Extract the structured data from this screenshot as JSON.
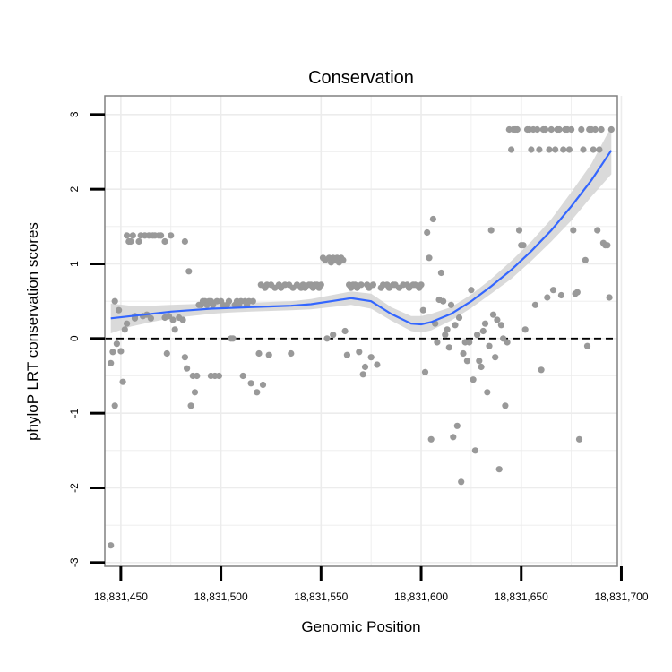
{
  "chart_data": {
    "type": "scatter",
    "title": "Conservation",
    "xlabel": "Genomic Position",
    "ylabel": "phyloP LRT conservation scores",
    "xlim": [
      18831442,
      18831698
    ],
    "ylim": [
      -3.05,
      3.25
    ],
    "xticks": [
      {
        "value": 18831450,
        "label": "18,831,450"
      },
      {
        "value": 18831500,
        "label": "18,831,500"
      },
      {
        "value": 18831550,
        "label": "18,831,550"
      },
      {
        "value": 18831600,
        "label": "18,831,600"
      },
      {
        "value": 18831650,
        "label": "18,831,650"
      },
      {
        "value": 18831700,
        "label": "18,831,700"
      }
    ],
    "yticks": [
      {
        "value": -3,
        "label": "-3"
      },
      {
        "value": -2,
        "label": "-2"
      },
      {
        "value": -1,
        "label": "-1"
      },
      {
        "value": 0,
        "label": "0"
      },
      {
        "value": 1,
        "label": "1"
      },
      {
        "value": 2,
        "label": "2"
      },
      {
        "value": 3,
        "label": "3"
      }
    ],
    "reference_line": {
      "y": 0,
      "style": "dashed"
    },
    "colors": {
      "points": "#999999",
      "smooth": "#3366ff",
      "ribbon": "#d4d4d4",
      "grid": "#ececec",
      "border": "#808080"
    },
    "points": [
      [
        18831445,
        -2.77
      ],
      [
        18831445,
        -0.33
      ],
      [
        18831446,
        -0.18
      ],
      [
        18831447,
        -0.9
      ],
      [
        18831447,
        0.5
      ],
      [
        18831448,
        -0.07
      ],
      [
        18831449,
        0.38
      ],
      [
        18831450,
        -0.17
      ],
      [
        18831451,
        -0.58
      ],
      [
        18831452,
        0.12
      ],
      [
        18831453,
        1.38
      ],
      [
        18831453,
        0.2
      ],
      [
        18831454,
        1.3
      ],
      [
        18831455,
        1.3
      ],
      [
        18831456,
        1.38
      ],
      [
        18831457,
        0.3
      ],
      [
        18831457,
        0.27
      ],
      [
        18831459,
        1.3
      ],
      [
        18831460,
        1.38
      ],
      [
        18831461,
        0.3
      ],
      [
        18831462,
        1.38
      ],
      [
        18831463,
        0.32
      ],
      [
        18831464,
        1.38
      ],
      [
        18831465,
        0.27
      ],
      [
        18831466,
        1.38
      ],
      [
        18831467,
        1.38
      ],
      [
        18831469,
        1.38
      ],
      [
        18831470,
        1.38
      ],
      [
        18831472,
        1.3
      ],
      [
        18831472,
        0.28
      ],
      [
        18831473,
        -0.2
      ],
      [
        18831474,
        0.3
      ],
      [
        18831475,
        1.38
      ],
      [
        18831476,
        0.25
      ],
      [
        18831477,
        0.12
      ],
      [
        18831479,
        0.28
      ],
      [
        18831481,
        0.25
      ],
      [
        18831482,
        1.3
      ],
      [
        18831482,
        -0.25
      ],
      [
        18831483,
        -0.4
      ],
      [
        18831484,
        0.9
      ],
      [
        18831485,
        -0.9
      ],
      [
        18831486,
        -0.5
      ],
      [
        18831487,
        -0.72
      ],
      [
        18831488,
        -0.5
      ],
      [
        18831489,
        0.45
      ],
      [
        18831490,
        0.45
      ],
      [
        18831491,
        0.5
      ],
      [
        18831492,
        0.5
      ],
      [
        18831493,
        0.45
      ],
      [
        18831494,
        0.5
      ],
      [
        18831495,
        -0.5
      ],
      [
        18831495,
        0.5
      ],
      [
        18831496,
        0.45
      ],
      [
        18831497,
        -0.5
      ],
      [
        18831498,
        0.5
      ],
      [
        18831499,
        -0.5
      ],
      [
        18831500,
        0.5
      ],
      [
        18831501,
        0.45
      ],
      [
        18831503,
        0.45
      ],
      [
        18831504,
        0.5
      ],
      [
        18831505,
        0.0
      ],
      [
        18831506,
        0.0
      ],
      [
        18831507,
        0.45
      ],
      [
        18831508,
        0.5
      ],
      [
        18831509,
        0.45
      ],
      [
        18831510,
        0.5
      ],
      [
        18831511,
        -0.5
      ],
      [
        18831512,
        0.5
      ],
      [
        18831513,
        0.45
      ],
      [
        18831514,
        0.5
      ],
      [
        18831515,
        -0.6
      ],
      [
        18831516,
        0.5
      ],
      [
        18831518,
        -0.72
      ],
      [
        18831519,
        -0.2
      ],
      [
        18831520,
        0.72
      ],
      [
        18831521,
        -0.62
      ],
      [
        18831522,
        0.68
      ],
      [
        18831523,
        0.72
      ],
      [
        18831524,
        -0.22
      ],
      [
        18831525,
        0.72
      ],
      [
        18831527,
        0.68
      ],
      [
        18831529,
        0.72
      ],
      [
        18831530,
        0.68
      ],
      [
        18831532,
        0.72
      ],
      [
        18831534,
        0.72
      ],
      [
        18831535,
        -0.2
      ],
      [
        18831536,
        0.68
      ],
      [
        18831538,
        0.72
      ],
      [
        18831540,
        0.68
      ],
      [
        18831541,
        0.72
      ],
      [
        18831542,
        0.68
      ],
      [
        18831544,
        0.72
      ],
      [
        18831545,
        0.72
      ],
      [
        18831546,
        0.68
      ],
      [
        18831547,
        0.72
      ],
      [
        18831548,
        0.72
      ],
      [
        18831549,
        0.68
      ],
      [
        18831550,
        0.72
      ],
      [
        18831551,
        1.08
      ],
      [
        18831552,
        1.05
      ],
      [
        18831553,
        0.0
      ],
      [
        18831554,
        1.08
      ],
      [
        18831555,
        1.02
      ],
      [
        18831556,
        1.08
      ],
      [
        18831556,
        0.05
      ],
      [
        18831557,
        1.05
      ],
      [
        18831558,
        1.08
      ],
      [
        18831559,
        1.02
      ],
      [
        18831560,
        1.08
      ],
      [
        18831561,
        1.05
      ],
      [
        18831562,
        0.1
      ],
      [
        18831563,
        -0.22
      ],
      [
        18831564,
        0.72
      ],
      [
        18831565,
        0.68
      ],
      [
        18831566,
        0.72
      ],
      [
        18831567,
        0.72
      ],
      [
        18831568,
        0.68
      ],
      [
        18831569,
        -0.18
      ],
      [
        18831570,
        0.72
      ],
      [
        18831571,
        -0.48
      ],
      [
        18831572,
        -0.38
      ],
      [
        18831573,
        0.72
      ],
      [
        18831574,
        0.68
      ],
      [
        18831575,
        -0.25
      ],
      [
        18831576,
        0.72
      ],
      [
        18831578,
        -0.35
      ],
      [
        18831580,
        0.68
      ],
      [
        18831581,
        0.72
      ],
      [
        18831583,
        0.72
      ],
      [
        18831584,
        0.68
      ],
      [
        18831586,
        0.72
      ],
      [
        18831587,
        0.72
      ],
      [
        18831589,
        0.68
      ],
      [
        18831591,
        0.72
      ],
      [
        18831593,
        0.72
      ],
      [
        18831594,
        0.68
      ],
      [
        18831596,
        0.72
      ],
      [
        18831597,
        0.72
      ],
      [
        18831599,
        0.68
      ],
      [
        18831600,
        0.72
      ],
      [
        18831601,
        0.38
      ],
      [
        18831602,
        -0.45
      ],
      [
        18831603,
        1.42
      ],
      [
        18831604,
        1.08
      ],
      [
        18831605,
        -1.35
      ],
      [
        18831606,
        1.6
      ],
      [
        18831607,
        0.2
      ],
      [
        18831608,
        -0.05
      ],
      [
        18831609,
        0.52
      ],
      [
        18831610,
        0.88
      ],
      [
        18831611,
        0.5
      ],
      [
        18831612,
        0.05
      ],
      [
        18831613,
        0.12
      ],
      [
        18831614,
        -0.12
      ],
      [
        18831615,
        0.45
      ],
      [
        18831616,
        -1.32
      ],
      [
        18831617,
        0.18
      ],
      [
        18831618,
        -1.17
      ],
      [
        18831619,
        0.28
      ],
      [
        18831620,
        -1.92
      ],
      [
        18831621,
        -0.2
      ],
      [
        18831622,
        -0.05
      ],
      [
        18831623,
        -0.3
      ],
      [
        18831624,
        -0.05
      ],
      [
        18831625,
        0.65
      ],
      [
        18831626,
        -0.55
      ],
      [
        18831627,
        -1.5
      ],
      [
        18831628,
        0.05
      ],
      [
        18831629,
        -0.3
      ],
      [
        18831630,
        -0.38
      ],
      [
        18831631,
        0.1
      ],
      [
        18831632,
        0.2
      ],
      [
        18831633,
        -0.72
      ],
      [
        18831634,
        -0.1
      ],
      [
        18831635,
        1.45
      ],
      [
        18831636,
        0.32
      ],
      [
        18831637,
        -0.25
      ],
      [
        18831638,
        0.25
      ],
      [
        18831639,
        -1.75
      ],
      [
        18831640,
        0.18
      ],
      [
        18831641,
        0.0
      ],
      [
        18831642,
        -0.9
      ],
      [
        18831643,
        -0.05
      ],
      [
        18831644,
        2.8
      ],
      [
        18831645,
        2.53
      ],
      [
        18831646,
        2.8
      ],
      [
        18831647,
        2.8
      ],
      [
        18831648,
        2.8
      ],
      [
        18831649,
        1.45
      ],
      [
        18831650,
        1.25
      ],
      [
        18831651,
        1.25
      ],
      [
        18831652,
        0.12
      ],
      [
        18831653,
        2.8
      ],
      [
        18831654,
        2.8
      ],
      [
        18831655,
        2.53
      ],
      [
        18831656,
        2.8
      ],
      [
        18831657,
        0.45
      ],
      [
        18831658,
        2.8
      ],
      [
        18831659,
        2.53
      ],
      [
        18831660,
        -0.42
      ],
      [
        18831661,
        2.8
      ],
      [
        18831662,
        2.8
      ],
      [
        18831663,
        0.55
      ],
      [
        18831664,
        2.53
      ],
      [
        18831665,
        2.8
      ],
      [
        18831666,
        0.65
      ],
      [
        18831667,
        2.53
      ],
      [
        18831668,
        2.8
      ],
      [
        18831669,
        2.8
      ],
      [
        18831670,
        0.58
      ],
      [
        18831671,
        2.53
      ],
      [
        18831672,
        2.8
      ],
      [
        18831673,
        2.8
      ],
      [
        18831674,
        2.53
      ],
      [
        18831675,
        2.8
      ],
      [
        18831676,
        1.45
      ],
      [
        18831677,
        0.6
      ],
      [
        18831678,
        0.62
      ],
      [
        18831679,
        -1.35
      ],
      [
        18831680,
        2.8
      ],
      [
        18831681,
        2.53
      ],
      [
        18831682,
        1.05
      ],
      [
        18831683,
        -0.1
      ],
      [
        18831684,
        2.8
      ],
      [
        18831685,
        2.8
      ],
      [
        18831686,
        2.53
      ],
      [
        18831687,
        2.8
      ],
      [
        18831688,
        1.45
      ],
      [
        18831689,
        2.53
      ],
      [
        18831690,
        2.8
      ],
      [
        18831691,
        1.28
      ],
      [
        18831692,
        1.25
      ],
      [
        18831693,
        1.25
      ],
      [
        18831694,
        0.55
      ],
      [
        18831695,
        2.8
      ]
    ],
    "smooth": {
      "x": [
        18831445,
        18831455,
        18831465,
        18831475,
        18831485,
        18831495,
        18831505,
        18831515,
        18831525,
        18831535,
        18831545,
        18831555,
        18831565,
        18831575,
        18831585,
        18831595,
        18831600,
        18831605,
        18831615,
        18831625,
        18831635,
        18831645,
        18831655,
        18831665,
        18831675,
        18831685,
        18831695
      ],
      "y": [
        0.27,
        0.3,
        0.33,
        0.36,
        0.38,
        0.4,
        0.41,
        0.42,
        0.43,
        0.44,
        0.46,
        0.5,
        0.54,
        0.5,
        0.33,
        0.2,
        0.19,
        0.22,
        0.33,
        0.5,
        0.7,
        0.92,
        1.17,
        1.45,
        1.77,
        2.12,
        2.52
      ],
      "lower": [
        0.07,
        0.16,
        0.22,
        0.27,
        0.3,
        0.33,
        0.35,
        0.36,
        0.37,
        0.38,
        0.39,
        0.42,
        0.45,
        0.4,
        0.24,
        0.1,
        0.08,
        0.11,
        0.24,
        0.41,
        0.6,
        0.8,
        1.04,
        1.3,
        1.58,
        1.9,
        2.2
      ],
      "upper": [
        0.47,
        0.44,
        0.44,
        0.45,
        0.46,
        0.47,
        0.47,
        0.48,
        0.49,
        0.5,
        0.53,
        0.58,
        0.63,
        0.6,
        0.42,
        0.3,
        0.3,
        0.33,
        0.42,
        0.59,
        0.8,
        1.04,
        1.3,
        1.6,
        1.96,
        2.34,
        2.84
      ]
    }
  }
}
